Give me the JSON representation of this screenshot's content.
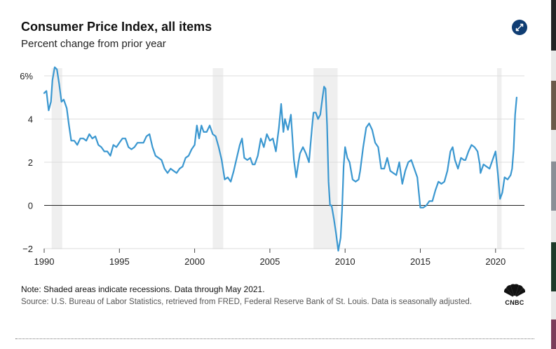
{
  "header": {
    "title": "Consumer Price Index, all items",
    "subtitle": "Percent change from prior year",
    "expand_icon": "expand-icon"
  },
  "footer": {
    "note": "Note: Shaded areas indicate recessions. Data through May 2021.",
    "source": "Source: U.S. Bureau of Labor Statistics, retrieved from FRED, Federal Reserve Bank of St. Louis. Data is seasonally adjusted.",
    "logo_text": "CNBC",
    "logo_icon": "cnbc-peacock-icon"
  },
  "colors": {
    "line": "#3a97d0",
    "recession": "#efefef",
    "grid": "#dddddd",
    "zero": "#222222",
    "accent": "#0f3d73"
  },
  "chart_data": {
    "type": "line",
    "title": "Consumer Price Index, all items",
    "subtitle": "Percent change from prior year",
    "xlabel": "",
    "ylabel": "",
    "xlim": [
      1990,
      2021.5
    ],
    "ylim": [
      -2,
      6
    ],
    "x_ticks": [
      1990,
      1995,
      2000,
      2005,
      2010,
      2015,
      2020
    ],
    "x_tick_labels": [
      "1990",
      "1995",
      "2000",
      "2005",
      "2010",
      "2015",
      "2020"
    ],
    "y_ticks": [
      -2,
      0,
      2,
      4,
      6
    ],
    "y_tick_labels": [
      "−2",
      "0",
      "2",
      "4",
      "6%"
    ],
    "grid": true,
    "recessions": [
      {
        "start": 1990.5,
        "end": 1991.2
      },
      {
        "start": 2001.2,
        "end": 2001.9
      },
      {
        "start": 2007.9,
        "end": 2009.5
      },
      {
        "start": 2020.1,
        "end": 2020.4
      }
    ],
    "series": [
      {
        "name": "CPI, all items (percent change from prior year)",
        "points": [
          [
            1990.0,
            5.2
          ],
          [
            1990.15,
            5.3
          ],
          [
            1990.3,
            4.4
          ],
          [
            1990.45,
            4.8
          ],
          [
            1990.55,
            5.8
          ],
          [
            1990.7,
            6.4
          ],
          [
            1990.85,
            6.3
          ],
          [
            1991.0,
            5.6
          ],
          [
            1991.15,
            4.8
          ],
          [
            1991.3,
            4.9
          ],
          [
            1991.5,
            4.5
          ],
          [
            1991.65,
            3.7
          ],
          [
            1991.8,
            3.0
          ],
          [
            1992.0,
            3.0
          ],
          [
            1992.2,
            2.8
          ],
          [
            1992.4,
            3.1
          ],
          [
            1992.6,
            3.1
          ],
          [
            1992.8,
            3.0
          ],
          [
            1993.0,
            3.3
          ],
          [
            1993.2,
            3.1
          ],
          [
            1993.4,
            3.2
          ],
          [
            1993.6,
            2.8
          ],
          [
            1993.8,
            2.7
          ],
          [
            1994.0,
            2.5
          ],
          [
            1994.2,
            2.5
          ],
          [
            1994.4,
            2.3
          ],
          [
            1994.6,
            2.8
          ],
          [
            1994.8,
            2.7
          ],
          [
            1995.0,
            2.9
          ],
          [
            1995.2,
            3.1
          ],
          [
            1995.4,
            3.1
          ],
          [
            1995.6,
            2.7
          ],
          [
            1995.8,
            2.6
          ],
          [
            1996.0,
            2.7
          ],
          [
            1996.2,
            2.9
          ],
          [
            1996.4,
            2.9
          ],
          [
            1996.6,
            2.9
          ],
          [
            1996.8,
            3.2
          ],
          [
            1997.0,
            3.3
          ],
          [
            1997.2,
            2.7
          ],
          [
            1997.4,
            2.3
          ],
          [
            1997.6,
            2.2
          ],
          [
            1997.8,
            2.1
          ],
          [
            1998.0,
            1.7
          ],
          [
            1998.2,
            1.5
          ],
          [
            1998.4,
            1.7
          ],
          [
            1998.6,
            1.6
          ],
          [
            1998.8,
            1.5
          ],
          [
            1999.0,
            1.7
          ],
          [
            1999.2,
            1.8
          ],
          [
            1999.4,
            2.2
          ],
          [
            1999.6,
            2.3
          ],
          [
            1999.8,
            2.6
          ],
          [
            2000.0,
            2.8
          ],
          [
            2000.15,
            3.7
          ],
          [
            2000.3,
            3.1
          ],
          [
            2000.45,
            3.7
          ],
          [
            2000.6,
            3.4
          ],
          [
            2000.8,
            3.4
          ],
          [
            2001.0,
            3.7
          ],
          [
            2001.2,
            3.3
          ],
          [
            2001.4,
            3.2
          ],
          [
            2001.6,
            2.7
          ],
          [
            2001.8,
            2.1
          ],
          [
            2002.0,
            1.2
          ],
          [
            2002.2,
            1.3
          ],
          [
            2002.4,
            1.1
          ],
          [
            2002.6,
            1.6
          ],
          [
            2002.8,
            2.2
          ],
          [
            2003.0,
            2.8
          ],
          [
            2003.15,
            3.1
          ],
          [
            2003.3,
            2.2
          ],
          [
            2003.5,
            2.1
          ],
          [
            2003.7,
            2.2
          ],
          [
            2003.85,
            1.9
          ],
          [
            2004.0,
            1.9
          ],
          [
            2004.2,
            2.3
          ],
          [
            2004.4,
            3.1
          ],
          [
            2004.6,
            2.7
          ],
          [
            2004.8,
            3.3
          ],
          [
            2005.0,
            3.0
          ],
          [
            2005.2,
            3.1
          ],
          [
            2005.4,
            2.5
          ],
          [
            2005.6,
            3.6
          ],
          [
            2005.75,
            4.7
          ],
          [
            2005.9,
            3.4
          ],
          [
            2006.0,
            4.0
          ],
          [
            2006.2,
            3.5
          ],
          [
            2006.4,
            4.2
          ],
          [
            2006.6,
            2.1
          ],
          [
            2006.75,
            1.3
          ],
          [
            2006.9,
            2.0
          ],
          [
            2007.0,
            2.4
          ],
          [
            2007.2,
            2.7
          ],
          [
            2007.4,
            2.4
          ],
          [
            2007.6,
            2.0
          ],
          [
            2007.8,
            3.6
          ],
          [
            2007.9,
            4.3
          ],
          [
            2008.05,
            4.3
          ],
          [
            2008.2,
            4.0
          ],
          [
            2008.35,
            4.2
          ],
          [
            2008.5,
            5.0
          ],
          [
            2008.6,
            5.5
          ],
          [
            2008.7,
            5.4
          ],
          [
            2008.8,
            3.7
          ],
          [
            2008.9,
            1.1
          ],
          [
            2009.0,
            0.0
          ],
          [
            2009.1,
            0.0
          ],
          [
            2009.25,
            -0.6
          ],
          [
            2009.4,
            -1.3
          ],
          [
            2009.55,
            -2.1
          ],
          [
            2009.7,
            -1.5
          ],
          [
            2009.8,
            -0.2
          ],
          [
            2009.9,
            1.8
          ],
          [
            2010.0,
            2.7
          ],
          [
            2010.15,
            2.2
          ],
          [
            2010.3,
            2.0
          ],
          [
            2010.5,
            1.2
          ],
          [
            2010.7,
            1.1
          ],
          [
            2010.9,
            1.2
          ],
          [
            2011.0,
            1.6
          ],
          [
            2011.2,
            2.7
          ],
          [
            2011.4,
            3.6
          ],
          [
            2011.6,
            3.8
          ],
          [
            2011.8,
            3.5
          ],
          [
            2012.0,
            2.9
          ],
          [
            2012.2,
            2.7
          ],
          [
            2012.4,
            1.7
          ],
          [
            2012.6,
            1.7
          ],
          [
            2012.8,
            2.2
          ],
          [
            2013.0,
            1.6
          ],
          [
            2013.2,
            1.5
          ],
          [
            2013.4,
            1.4
          ],
          [
            2013.6,
            2.0
          ],
          [
            2013.8,
            1.0
          ],
          [
            2014.0,
            1.6
          ],
          [
            2014.2,
            2.0
          ],
          [
            2014.4,
            2.1
          ],
          [
            2014.6,
            1.7
          ],
          [
            2014.8,
            1.3
          ],
          [
            2015.0,
            -0.1
          ],
          [
            2015.2,
            -0.1
          ],
          [
            2015.4,
            0.0
          ],
          [
            2015.6,
            0.2
          ],
          [
            2015.8,
            0.2
          ],
          [
            2016.0,
            0.7
          ],
          [
            2016.2,
            1.1
          ],
          [
            2016.4,
            1.0
          ],
          [
            2016.6,
            1.1
          ],
          [
            2016.8,
            1.6
          ],
          [
            2017.0,
            2.5
          ],
          [
            2017.15,
            2.7
          ],
          [
            2017.3,
            2.1
          ],
          [
            2017.5,
            1.7
          ],
          [
            2017.7,
            2.2
          ],
          [
            2017.9,
            2.1
          ],
          [
            2018.0,
            2.1
          ],
          [
            2018.2,
            2.5
          ],
          [
            2018.4,
            2.8
          ],
          [
            2018.6,
            2.7
          ],
          [
            2018.8,
            2.5
          ],
          [
            2018.95,
            1.9
          ],
          [
            2019.0,
            1.5
          ],
          [
            2019.2,
            1.9
          ],
          [
            2019.4,
            1.8
          ],
          [
            2019.6,
            1.7
          ],
          [
            2019.8,
            2.1
          ],
          [
            2020.0,
            2.5
          ],
          [
            2020.15,
            1.5
          ],
          [
            2020.3,
            0.3
          ],
          [
            2020.45,
            0.6
          ],
          [
            2020.6,
            1.3
          ],
          [
            2020.8,
            1.2
          ],
          [
            2021.0,
            1.4
          ],
          [
            2021.1,
            1.7
          ],
          [
            2021.2,
            2.6
          ],
          [
            2021.3,
            4.2
          ],
          [
            2021.4,
            5.0
          ]
        ]
      }
    ]
  }
}
